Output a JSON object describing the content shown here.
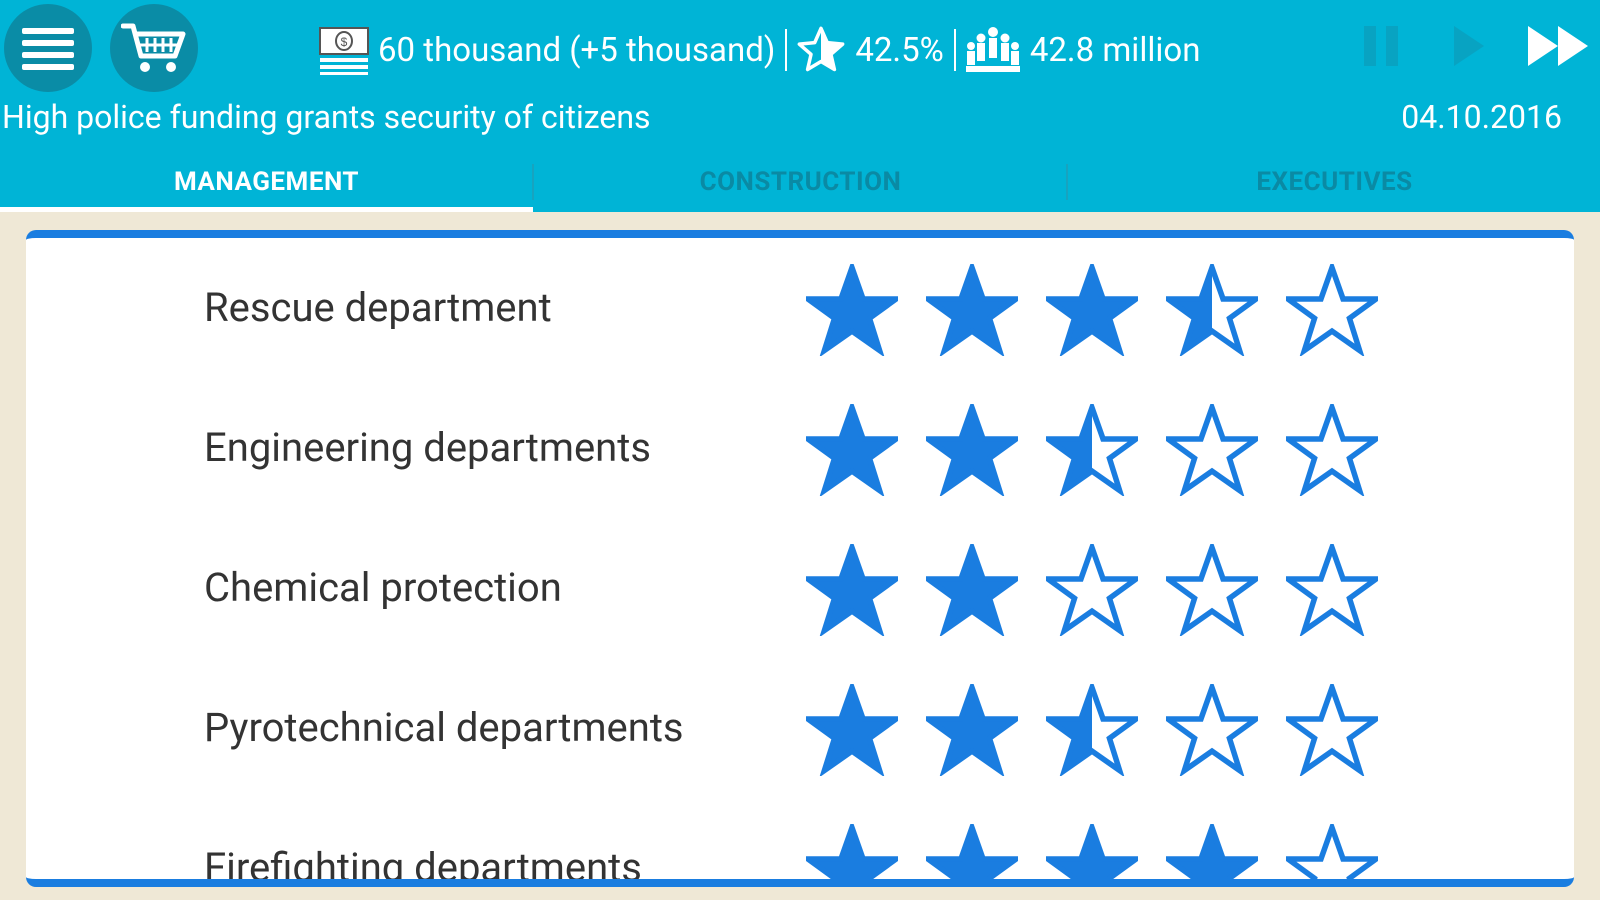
{
  "header": {
    "money": "60 thousand (+5 thousand)",
    "rating": "42.5%",
    "population": "42.8 million",
    "headline": "High police funding grants security of citizens",
    "date": "04.10.2016",
    "icons": {
      "menu": "menu-icon",
      "shop": "shopping-cart-icon",
      "money": "banknote-icon",
      "rating": "star-icon",
      "population": "people-icon",
      "pause": "pause-icon",
      "play": "play-icon",
      "fast_forward": "fast-forward-icon"
    }
  },
  "tabs": [
    {
      "label": "MANAGEMENT",
      "active": true
    },
    {
      "label": "CONSTRUCTION",
      "active": false
    },
    {
      "label": "EXECUTIVES",
      "active": false
    }
  ],
  "departments": [
    {
      "label": "Rescue department",
      "rating": 3.5
    },
    {
      "label": "Engineering departments",
      "rating": 2.5
    },
    {
      "label": "Chemical protection",
      "rating": 2
    },
    {
      "label": "Pyrotechnical departments",
      "rating": 2.5
    },
    {
      "label": "Firefighting departments",
      "rating": 4
    }
  ],
  "colors": {
    "topbar": "#00b4d6",
    "accent": "#1a7de0",
    "star": "#1a7de0",
    "background": "#efe8d6"
  }
}
